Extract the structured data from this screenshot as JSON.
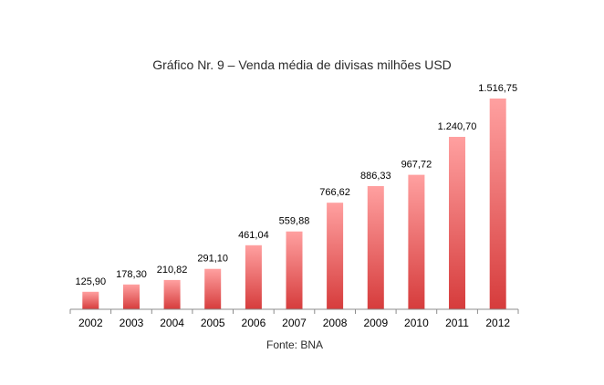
{
  "chart_data": {
    "type": "bar",
    "title": "Gráfico Nr. 9 – Venda média de divisas milhões USD",
    "source": "Fonte: BNA",
    "categories": [
      "2002",
      "2003",
      "2004",
      "2005",
      "2006",
      "2007",
      "2008",
      "2009",
      "2010",
      "2011",
      "2012"
    ],
    "values": [
      125.9,
      178.3,
      210.82,
      291.1,
      461.04,
      559.88,
      766.62,
      886.33,
      967.72,
      1240.7,
      1516.75
    ],
    "value_labels": [
      "125,90",
      "178,30",
      "210,82",
      "291,10",
      "461,04",
      "559,88",
      "766,62",
      "886,33",
      "967,72",
      "1.240,70",
      "1.516,75"
    ],
    "xlabel": "",
    "ylabel": "",
    "ylim": [
      0,
      1600
    ],
    "grid": false,
    "legend": "none",
    "colors": {
      "bar_top": "#ffa0a0",
      "bar_bottom": "#d63c3c",
      "axis": "#8c8c8c",
      "text": "#000000"
    }
  }
}
